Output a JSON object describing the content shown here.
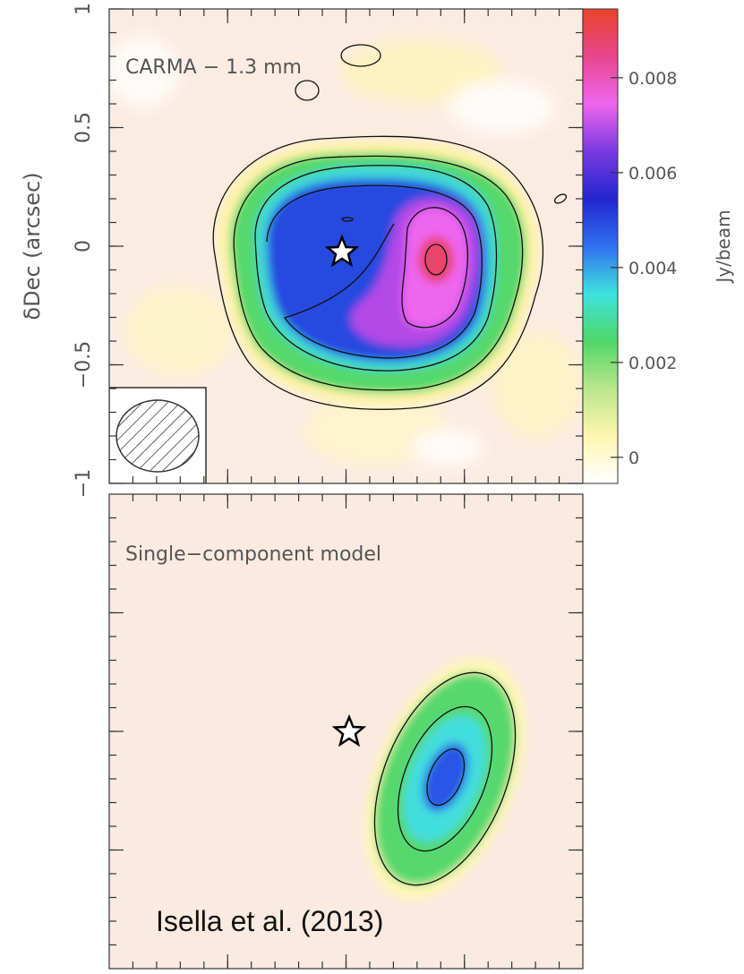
{
  "chart_data": [
    {
      "type": "image",
      "title": "CARMA − 1.3 mm",
      "ylabel": "δDec (arcsec)",
      "xlim": [
        1,
        -1
      ],
      "ylim": [
        -1,
        1
      ],
      "xticks": [
        0.5,
        0,
        -0.5
      ],
      "yticks": [
        {
          "value": -1,
          "label": "−1"
        },
        {
          "value": -0.5,
          "label": "−0.5"
        },
        0,
        0.5,
        1
      ],
      "colorbar": {
        "label": "Jy/beam",
        "lim": [
          -0.00055,
          0.00945
        ],
        "ticks": [
          0,
          0.002,
          0.004,
          0.006,
          0.008
        ],
        "colors": [
          "#ffffff",
          "#fff6b0",
          "#b9e68c",
          "#4fd868",
          "#3ee2de",
          "#2f70f0",
          "#2326cf",
          "#7a3ae0",
          "#ee66ee",
          "#e8468c",
          "#e8442a"
        ]
      }
    },
    {
      "type": "image",
      "title": "Single−component model",
      "annotation": "Isella et al. (2013)",
      "xlim": [
        1,
        -1
      ],
      "ylim": [
        -1,
        1
      ],
      "xticks": [
        0.5,
        0,
        -0.5
      ],
      "yticks": [
        -0.5,
        0,
        0.5
      ],
      "tick_labels": false
    }
  ]
}
